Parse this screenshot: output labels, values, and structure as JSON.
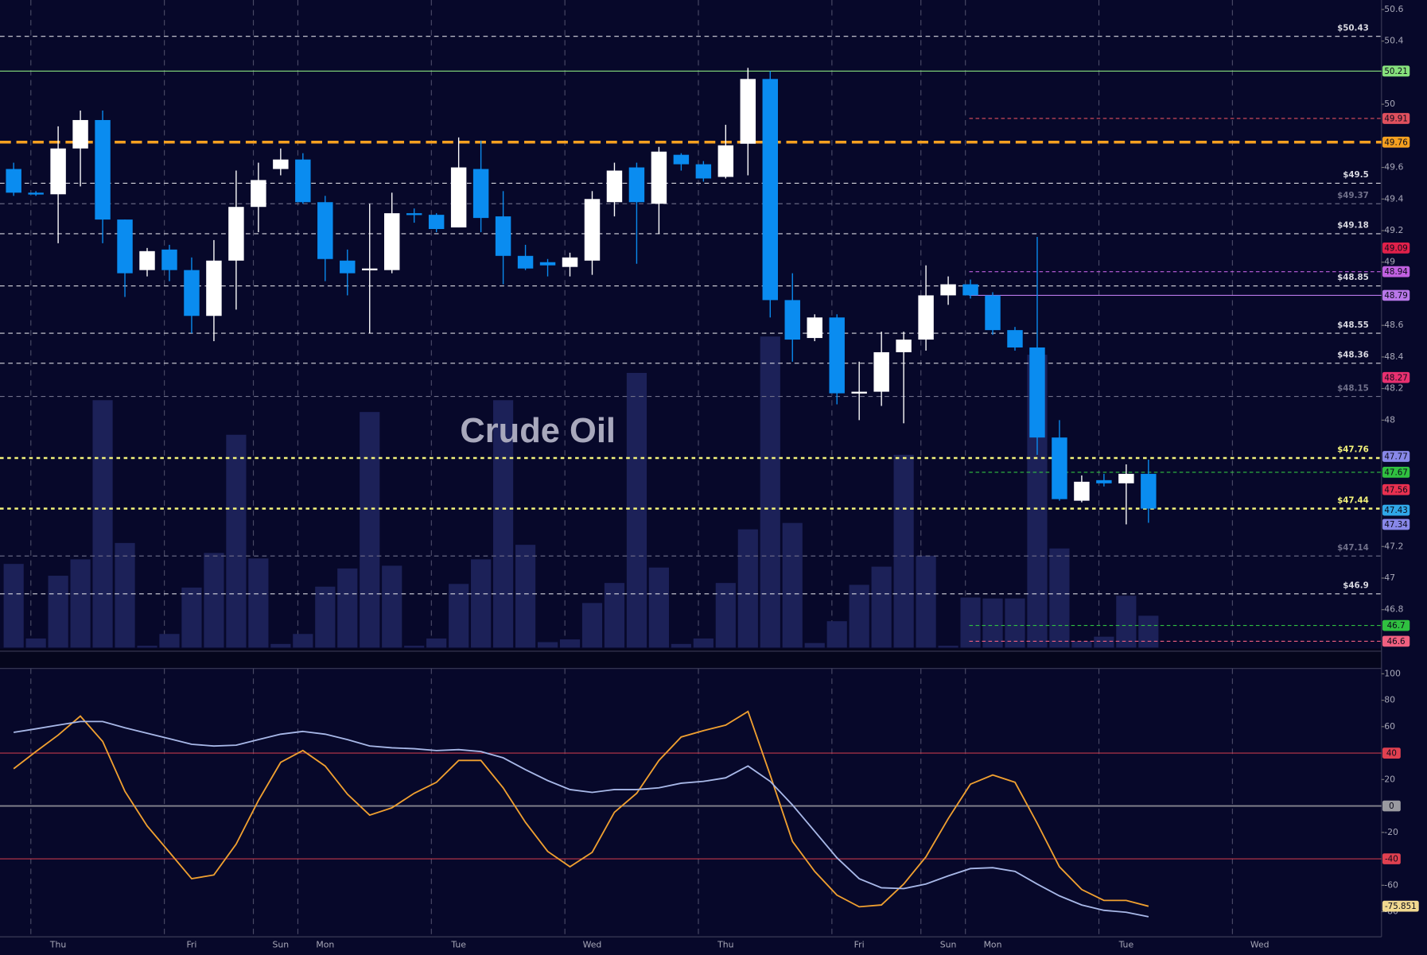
{
  "chart_data": [
    {
      "type": "candlestick",
      "title": "Crude Oil",
      "open": [
        49.59,
        49.44,
        49.43,
        49.72,
        49.9,
        49.27,
        48.95,
        49.08,
        48.95,
        48.66,
        49.01,
        49.35,
        49.59,
        49.65,
        49.38,
        49.01,
        48.95,
        48.95,
        49.31,
        49.3,
        49.22,
        49.59,
        49.29,
        49.04,
        49.0,
        48.97,
        49.01,
        49.38,
        49.6,
        49.37,
        49.68,
        49.62,
        49.54,
        49.75,
        50.16,
        48.76,
        48.52,
        48.65,
        48.17,
        48.18,
        48.43,
        48.51,
        48.79,
        48.86,
        48.79,
        48.57,
        48.46,
        47.89,
        47.49,
        47.62,
        47.6,
        47.66,
        null,
        null,
        null,
        null,
        null,
        null,
        null,
        null,
        null,
        null
      ],
      "high": [
        49.63,
        49.45,
        49.86,
        49.96,
        49.96,
        49.27,
        49.09,
        49.11,
        49.03,
        49.14,
        49.58,
        49.63,
        49.72,
        49.69,
        49.42,
        49.08,
        49.37,
        49.44,
        49.34,
        49.31,
        49.79,
        49.77,
        49.45,
        49.11,
        49.02,
        49.06,
        49.45,
        49.63,
        49.63,
        49.73,
        49.69,
        49.64,
        49.87,
        50.23,
        50.21,
        48.93,
        48.67,
        48.67,
        48.37,
        48.56,
        48.56,
        48.98,
        48.91,
        48.89,
        48.81,
        48.59,
        49.16,
        48.0,
        47.65,
        47.66,
        47.72,
        47.75,
        null,
        null,
        null,
        null,
        null,
        null,
        null,
        null,
        null,
        null
      ],
      "low": [
        49.42,
        49.42,
        49.12,
        49.48,
        49.12,
        48.78,
        48.91,
        48.88,
        48.55,
        48.5,
        48.7,
        49.19,
        49.55,
        49.37,
        48.88,
        48.79,
        48.55,
        48.93,
        49.25,
        49.19,
        49.22,
        49.19,
        48.86,
        48.95,
        48.91,
        48.91,
        48.92,
        49.29,
        48.99,
        49.18,
        49.58,
        49.51,
        49.53,
        49.55,
        48.65,
        48.37,
        48.5,
        48.1,
        48.0,
        48.09,
        47.98,
        48.44,
        48.73,
        48.77,
        48.54,
        48.44,
        47.78,
        47.49,
        47.48,
        47.58,
        47.34,
        47.35,
        null,
        null,
        null,
        null,
        null,
        null,
        null,
        null,
        null,
        null
      ],
      "close": [
        49.44,
        49.43,
        49.72,
        49.9,
        49.27,
        48.93,
        49.07,
        48.95,
        48.66,
        49.01,
        49.35,
        49.52,
        49.65,
        49.38,
        49.02,
        48.93,
        48.96,
        49.31,
        49.3,
        49.21,
        49.6,
        49.28,
        49.04,
        48.96,
        48.98,
        49.03,
        49.4,
        49.58,
        49.38,
        49.7,
        49.62,
        49.53,
        49.74,
        50.16,
        48.76,
        48.51,
        48.65,
        48.17,
        48.18,
        48.43,
        48.51,
        48.79,
        48.86,
        48.79,
        48.57,
        48.46,
        47.89,
        47.5,
        47.61,
        47.6,
        47.66,
        47.44,
        null,
        null,
        null,
        null,
        null,
        null,
        null,
        null,
        null,
        null
      ],
      "volume": [
        92,
        10,
        79,
        97,
        272,
        115,
        2,
        15,
        66,
        104,
        234,
        98,
        4,
        15,
        67,
        87,
        259,
        90,
        2,
        10,
        70,
        97,
        272,
        113,
        6,
        9,
        49,
        71,
        302,
        88,
        4,
        10,
        71,
        130,
        342,
        137,
        5,
        29,
        69,
        89,
        212,
        101,
        2,
        55,
        54,
        54,
        322,
        109,
        7,
        12,
        57,
        35,
        null,
        null,
        null,
        null,
        null,
        null,
        null,
        null,
        null,
        null
      ],
      "up_color": "#ffffff",
      "down_color": "#0a8cf0",
      "volume_color": "#1c2158",
      "ylim": [
        46.56,
        50.66
      ],
      "volume_lim": [
        0,
        712
      ],
      "yticks": [
        50.6,
        50.4,
        50,
        49.6,
        49.4,
        49.2,
        49,
        48.6,
        48.4,
        48.2,
        48,
        47.2,
        47,
        46.8
      ],
      "grid": true,
      "price_levels": [
        {
          "value": 50.43,
          "label": "$50.43",
          "color": "#d8d8e0"
        },
        {
          "value": 49.5,
          "label": "$49.5",
          "color": "#d8d8e0"
        },
        {
          "value": 49.37,
          "label": "$49.37",
          "color": "#70708a"
        },
        {
          "value": 49.18,
          "label": "$49.18",
          "color": "#d8d8e0"
        },
        {
          "value": 48.85,
          "label": "$48.85",
          "color": "#d8d8e0"
        },
        {
          "value": 48.55,
          "label": "$48.55",
          "color": "#d8d8e0"
        },
        {
          "value": 48.36,
          "label": "$48.36",
          "color": "#d8d8e0"
        },
        {
          "value": 48.15,
          "label": "$48.15",
          "color": "#70708a"
        },
        {
          "value": 47.76,
          "label": "$47.76",
          "color": "#f2f27a"
        },
        {
          "value": 47.44,
          "label": "$47.44",
          "color": "#f2f27a"
        },
        {
          "value": 47.14,
          "label": "$47.14",
          "color": "#70708a"
        },
        {
          "value": 46.9,
          "label": "$46.9",
          "color": "#d8d8e0"
        }
      ],
      "marker_levels": [
        {
          "value": 50.21,
          "color": "#86e07c",
          "line": "full"
        },
        {
          "value": 49.91,
          "color": "#e0505e",
          "line": "recent"
        },
        {
          "value": 49.76,
          "color": "#f5a020",
          "line": "full"
        },
        {
          "value": 49.09,
          "color": "#e0204a",
          "line": "none"
        },
        {
          "value": 48.94,
          "color": "#c060e0",
          "line": "recent"
        },
        {
          "value": 48.79,
          "color": "#b877e8",
          "line": "recent"
        },
        {
          "value": 48.27,
          "color": "#e83070",
          "line": "none"
        },
        {
          "value": 47.77,
          "color": "#8888e8",
          "line": "none"
        },
        {
          "value": 47.67,
          "color": "#30c040",
          "line": "recent"
        },
        {
          "value": 47.56,
          "color": "#e83050",
          "line": "none"
        },
        {
          "value": 47.43,
          "color": "#30a8e8",
          "line": "none"
        },
        {
          "value": 47.34,
          "color": "#8888e8",
          "line": "none"
        },
        {
          "value": 46.7,
          "color": "#30c040",
          "line": "recent"
        },
        {
          "value": 46.6,
          "color": "#f06080",
          "line": "recent"
        }
      ]
    },
    {
      "type": "line",
      "categories": [
        null,
        null,
        "Thu",
        null,
        null,
        null,
        null,
        null,
        "Fri",
        null,
        null,
        null,
        "Sun",
        null,
        "Mon",
        null,
        null,
        null,
        null,
        null,
        "Tue",
        null,
        null,
        null,
        null,
        null,
        "Wed",
        null,
        null,
        null,
        null,
        null,
        "Thu",
        null,
        null,
        null,
        null,
        null,
        "Fri",
        null,
        null,
        null,
        "Sun",
        null,
        "Mon",
        null,
        null,
        null,
        null,
        null,
        "Tue",
        null,
        null,
        null,
        null,
        null,
        "Wed",
        null,
        null,
        null,
        null,
        null
      ],
      "series": [
        {
          "color": "#f0a030",
          "values": [
            28.2,
            41.2,
            53.6,
            68.0,
            48.8,
            11.0,
            -15.1,
            -35.1,
            -55.0,
            -52.2,
            -28.9,
            4.1,
            33.0,
            41.9,
            30.2,
            8.9,
            -6.9,
            -1.4,
            9.6,
            17.9,
            34.4,
            34.4,
            13.7,
            -12.4,
            -34.4,
            -46.0,
            -35.1,
            -4.8,
            9.6,
            34.4,
            52.2,
            57.0,
            61.2,
            71.5,
            23.4,
            -26.8,
            -49.5,
            -67.4,
            -76.3,
            -74.9,
            -59.1,
            -38.5,
            -9.6,
            16.5,
            23.4,
            17.9,
            -13.1,
            -46.0,
            -63.2,
            -71.5,
            -71.5,
            -75.851,
            null,
            null,
            null,
            null,
            null,
            null,
            null,
            null,
            null,
            null
          ]
        },
        {
          "color": "#a8b8e8",
          "values": [
            55.7,
            58.4,
            61.2,
            63.9,
            63.9,
            59.1,
            55.0,
            50.9,
            46.7,
            45.4,
            46.0,
            50.2,
            54.3,
            56.4,
            54.3,
            50.2,
            45.4,
            44.0,
            43.3,
            41.9,
            42.6,
            41.2,
            36.4,
            27.5,
            19.2,
            12.4,
            10.3,
            12.4,
            12.4,
            13.7,
            17.2,
            18.6,
            21.3,
            30.2,
            18.6,
            0.7,
            -19.2,
            -39.2,
            -55.0,
            -61.9,
            -62.5,
            -59.1,
            -52.9,
            -47.4,
            -46.7,
            -49.5,
            -59.1,
            -68.0,
            -74.9,
            -79.0,
            -80.4,
            -83.8,
            null,
            null,
            null,
            null,
            null,
            null,
            null,
            null,
            null,
            null
          ]
        }
      ],
      "last_value_color": "#f0d890",
      "ylim": [
        -99,
        104
      ],
      "yticks": [
        100,
        80,
        60,
        20,
        -20,
        -60,
        -80
      ],
      "levels": [
        {
          "value": 40,
          "color": "#e04050"
        },
        {
          "value": 0,
          "color": "#9a9aa0"
        },
        {
          "value": -40,
          "color": "#e04050"
        }
      ],
      "grid": true
    }
  ]
}
